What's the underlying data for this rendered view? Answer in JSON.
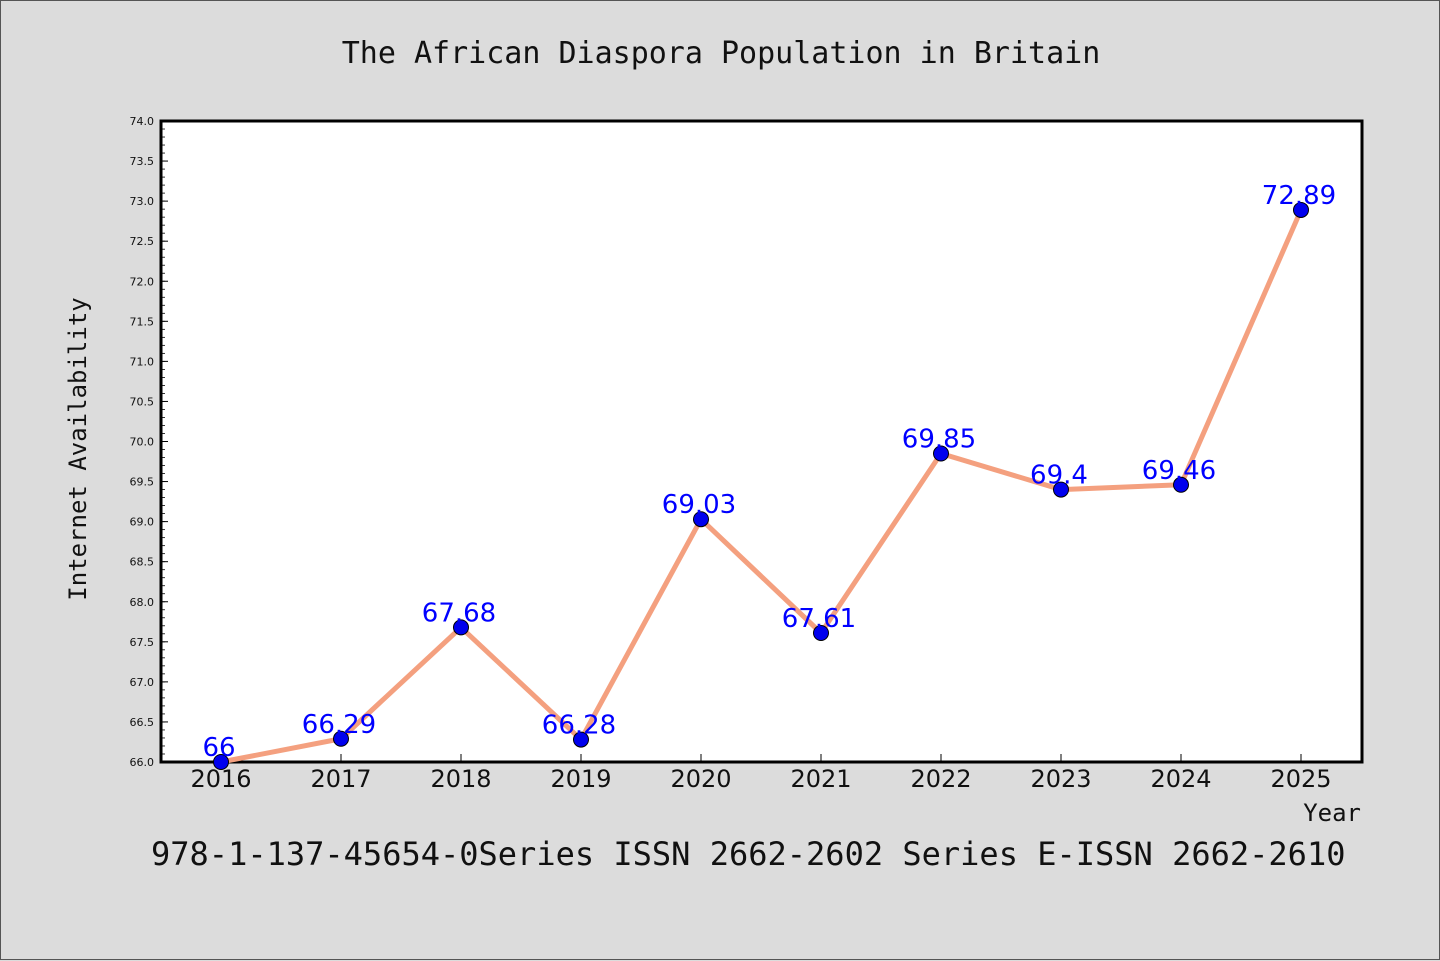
{
  "chart_data": {
    "type": "line",
    "title": "The African Diaspora Population in Britain",
    "xlabel": "Year",
    "ylabel": "Internet Availability",
    "x": [
      "2016",
      "2017",
      "2018",
      "2019",
      "2020",
      "2021",
      "2022",
      "2023",
      "2024",
      "2025"
    ],
    "y": [
      66,
      66.29,
      67.68,
      66.28,
      69.03,
      67.61,
      69.85,
      69.4,
      69.46,
      72.89
    ],
    "data_labels": [
      "66",
      "66.29",
      "67.68",
      "66.28",
      "69.03",
      "67.61",
      "69.85",
      "69.4",
      "69.46",
      "72.89"
    ],
    "ylim": [
      66.0,
      74.0
    ],
    "yticks": [
      "66.0",
      "66.5",
      "67.0",
      "67.5",
      "68.0",
      "68.5",
      "69.0",
      "69.5",
      "70.0",
      "70.5",
      "71.0",
      "71.5",
      "72.0",
      "72.5",
      "73.0",
      "73.5",
      "74.0"
    ],
    "grid": false,
    "line_color": "#f4a07f",
    "marker_color": "#0000ee",
    "label_color": "#0000ff"
  },
  "footnote": "978-1-137-45654-0Series ISSN 2662-2602 Series E-ISSN 2662-2610"
}
